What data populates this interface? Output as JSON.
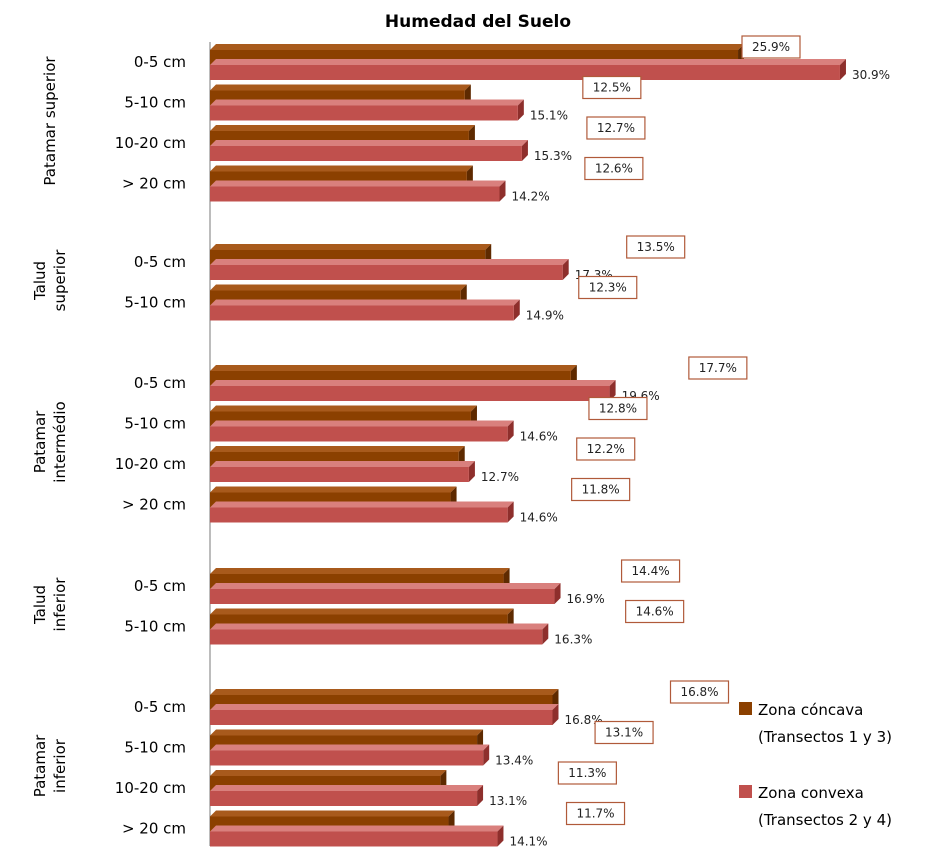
{
  "chart_data": {
    "type": "bar",
    "orientation": "horizontal",
    "title": "Humedad del Suelo",
    "xlim": [
      0,
      31
    ],
    "grid": false,
    "legend_position": "bottom-right",
    "series": [
      {
        "name": "Zona cóncava",
        "name_line2": "(Transectos 1 y 3)",
        "color": "#8B4000"
      },
      {
        "name": "Zona convexa",
        "name_line2": "(Transectos 2 y 4)",
        "color": "#C0504D"
      }
    ],
    "groups": [
      {
        "label": [
          "Patamar superior"
        ],
        "rows": [
          {
            "category": "0-5 cm",
            "concava": 25.9,
            "convexa": 30.9,
            "concava_label": "25.9%",
            "convexa_label": "30.9%"
          },
          {
            "category": "5-10 cm",
            "concava": 12.5,
            "convexa": 15.1,
            "concava_label": "12.5%",
            "convexa_label": "15.1%"
          },
          {
            "category": "10-20 cm",
            "concava": 12.7,
            "convexa": 15.3,
            "concava_label": "12.7%",
            "convexa_label": "15.3%"
          },
          {
            "category": "> 20 cm",
            "concava": 12.6,
            "convexa": 14.2,
            "concava_label": "12.6%",
            "convexa_label": "14.2%"
          }
        ]
      },
      {
        "label": [
          "Talud",
          "superior"
        ],
        "rows": [
          {
            "category": "0-5 cm",
            "concava": 13.5,
            "convexa": 17.3,
            "concava_label": "13.5%",
            "convexa_label": "17.3%"
          },
          {
            "category": "5-10 cm",
            "concava": 12.3,
            "convexa": 14.9,
            "concava_label": "12.3%",
            "convexa_label": "14.9%"
          }
        ]
      },
      {
        "label": [
          "Patamar",
          "intermédio"
        ],
        "rows": [
          {
            "category": "0-5 cm",
            "concava": 17.7,
            "convexa": 19.6,
            "concava_label": "17.7%",
            "convexa_label": "19.6%"
          },
          {
            "category": "5-10 cm",
            "concava": 12.8,
            "convexa": 14.6,
            "concava_label": "12.8%",
            "convexa_label": "14.6%"
          },
          {
            "category": "10-20 cm",
            "concava": 12.2,
            "convexa": 12.7,
            "concava_label": "12.2%",
            "convexa_label": "12.7%"
          },
          {
            "category": "> 20 cm",
            "concava": 11.8,
            "convexa": 14.6,
            "concava_label": "11.8%",
            "convexa_label": "14.6%"
          }
        ]
      },
      {
        "label": [
          "Talud",
          "inferior"
        ],
        "rows": [
          {
            "category": "0-5 cm",
            "concava": 14.4,
            "convexa": 16.9,
            "concava_label": "14.4%",
            "convexa_label": "16.9%"
          },
          {
            "category": "5-10 cm",
            "concava": 14.6,
            "convexa": 16.3,
            "concava_label": "14.6%",
            "convexa_label": "16.3%"
          }
        ]
      },
      {
        "label": [
          "Patamar",
          "inferior"
        ],
        "rows": [
          {
            "category": "0-5 cm",
            "concava": 16.8,
            "convexa": 16.8,
            "concava_label": "16.8%",
            "convexa_label": "16.8%"
          },
          {
            "category": "5-10 cm",
            "concava": 13.1,
            "convexa": 13.4,
            "concava_label": "13.1%",
            "convexa_label": "13.4%"
          },
          {
            "category": "10-20 cm",
            "concava": 11.3,
            "convexa": 13.1,
            "concava_label": "11.3%",
            "convexa_label": "13.1%"
          },
          {
            "category": "> 20 cm",
            "concava": 11.7,
            "convexa": 14.1,
            "concava_label": "11.7%",
            "convexa_label": "14.1%"
          }
        ]
      }
    ]
  }
}
